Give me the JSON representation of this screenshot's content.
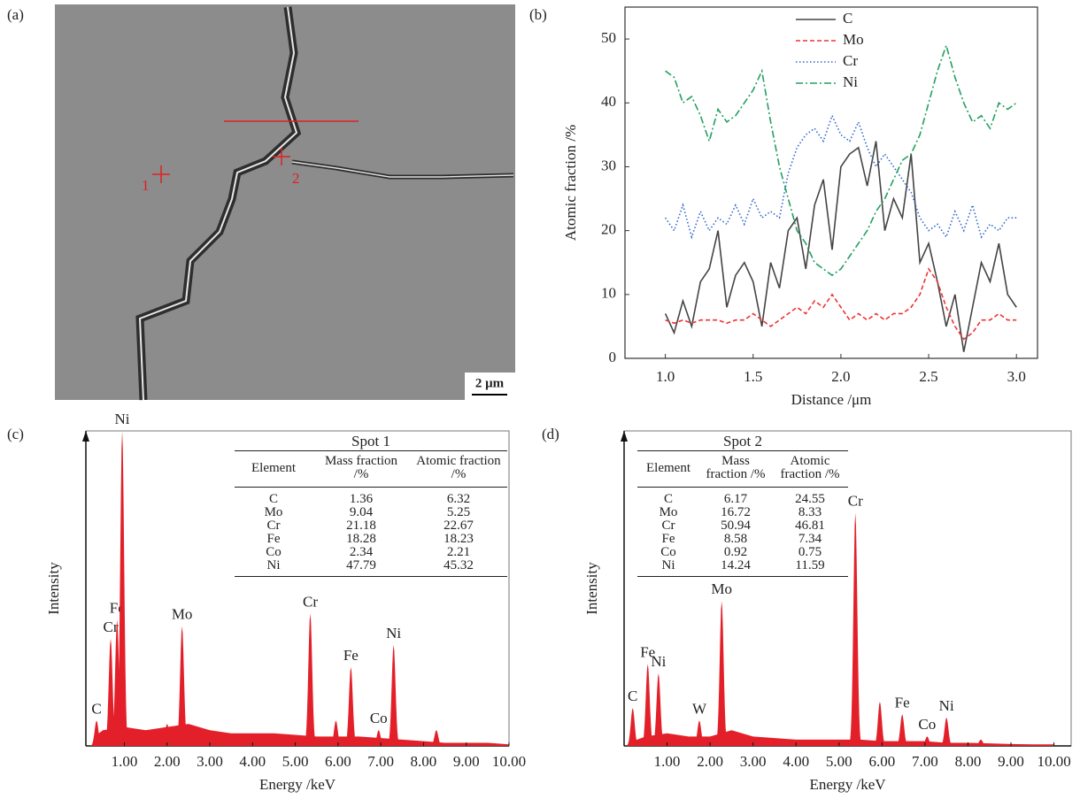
{
  "image": {
    "panel_label": "(a)",
    "spots": [
      "1",
      "2"
    ],
    "scale_bar": "2 μm"
  },
  "chart_data": [
    {
      "type": "line",
      "panel_label": "(b)",
      "xlabel": "Distance /μm",
      "ylabel": "Atomic fraction /%",
      "xlim": [
        0.77,
        3.12
      ],
      "ylim": [
        0,
        55
      ],
      "xticks": [
        {
          "value": 1,
          "label": "1.0"
        },
        1.5,
        {
          "value": 2,
          "label": "2.0"
        },
        2.5,
        {
          "value": 3,
          "label": "3.0"
        }
      ],
      "yticks": [
        0,
        10,
        20,
        30,
        40,
        50
      ],
      "legend": "upper center",
      "x": [
        1.0,
        1.05,
        1.1,
        1.15,
        1.2,
        1.25,
        1.3,
        1.35,
        1.4,
        1.45,
        1.5,
        1.55,
        1.6,
        1.65,
        1.7,
        1.75,
        1.8,
        1.85,
        1.9,
        1.95,
        2.0,
        2.05,
        2.1,
        2.15,
        2.2,
        2.25,
        2.3,
        2.35,
        2.4,
        2.45,
        2.5,
        2.55,
        2.6,
        2.65,
        2.7,
        2.75,
        2.8,
        2.85,
        2.9,
        2.95,
        3.0
      ],
      "series": [
        {
          "name": "C",
          "color": "#444444",
          "linestyle": "solid",
          "values": [
            7,
            4,
            9,
            5,
            12,
            14,
            20,
            8,
            13,
            15,
            12,
            5,
            15,
            11,
            20,
            22,
            14,
            24,
            28,
            17,
            30,
            32,
            33,
            27,
            34,
            20,
            25,
            22,
            32,
            15,
            18,
            12,
            5,
            10,
            1,
            8,
            15,
            12,
            18,
            10,
            8
          ]
        },
        {
          "name": "Mo",
          "color": "#ee3333",
          "linestyle": "dashed",
          "values": [
            6,
            5.5,
            6,
            5.5,
            6,
            6,
            6,
            5.5,
            6,
            6,
            7,
            6,
            5,
            6,
            7,
            8,
            7,
            9,
            8,
            10,
            8,
            6,
            7,
            6,
            7,
            6,
            7,
            7,
            8,
            10,
            14,
            12,
            8,
            5,
            3,
            4,
            6,
            6,
            7,
            6,
            6
          ]
        },
        {
          "name": "Cr",
          "color": "#3366cc",
          "linestyle": "dotted",
          "values": [
            22,
            20,
            24,
            19,
            23,
            20,
            22,
            21,
            24,
            21,
            25,
            22,
            23,
            22,
            29,
            33,
            35,
            36,
            34,
            38,
            35,
            34,
            37,
            33,
            30,
            32,
            30,
            28,
            26,
            22,
            20,
            21,
            19,
            23,
            20,
            24,
            19,
            21,
            20,
            22,
            22
          ]
        },
        {
          "name": "Ni",
          "color": "#22a060",
          "linestyle": "dashdot",
          "values": [
            45,
            44,
            40,
            41,
            38,
            34,
            39,
            37,
            38,
            40,
            42,
            45,
            37,
            30,
            25,
            20,
            18,
            15,
            14,
            13,
            14,
            16,
            18,
            20,
            23,
            25,
            28,
            31,
            32,
            35,
            40,
            45,
            49,
            44,
            40,
            37,
            38,
            36,
            40,
            39,
            40
          ]
        }
      ]
    },
    {
      "type": "spectrum",
      "panel_label": "(c)",
      "xlabel": "Energy /keV",
      "ylabel": "Intensity",
      "color": "#e3202a",
      "xlim": [
        0.1,
        10
      ],
      "ylim": [
        0,
        100
      ],
      "xticks": [
        {
          "value": 1,
          "label": "1.00"
        },
        {
          "value": 2,
          "label": "2.00"
        },
        {
          "value": 3,
          "label": "3.00"
        },
        {
          "value": 4,
          "label": "4.00"
        },
        {
          "value": 5,
          "label": "5.00"
        },
        {
          "value": 6,
          "label": "6.00"
        },
        {
          "value": 7,
          "label": "7.00"
        },
        {
          "value": 8,
          "label": "8.00"
        },
        {
          "value": 9,
          "label": "9.00"
        },
        {
          "value": 10,
          "label": "10.00"
        }
      ],
      "x": [
        0.3,
        0.5,
        1,
        1.5,
        2,
        2.5,
        3,
        3.5,
        4,
        4.5,
        5,
        5.5,
        6,
        6.5,
        7,
        7.5,
        8,
        8.5,
        9,
        9.5,
        10
      ],
      "values": [
        3,
        5,
        6,
        5,
        6,
        7,
        5,
        4,
        4,
        4,
        3.5,
        3,
        3,
        3,
        2.5,
        2,
        1.5,
        1,
        1,
        1,
        0.5
      ],
      "peaks": {
        "labels": [
          "C",
          "Cr",
          "Fe",
          "Ni",
          null,
          "Mo",
          "Cr",
          null,
          "Fe",
          "Co",
          "Ni",
          null
        ],
        "energy": [
          0.35,
          0.68,
          0.83,
          0.95,
          2.0,
          2.35,
          5.35,
          5.95,
          6.3,
          6.95,
          7.3,
          8.3
        ],
        "intensity": [
          8,
          34,
          40,
          100,
          7,
          38,
          42,
          8,
          25,
          5,
          32,
          5
        ]
      },
      "table": {
        "title": "Spot 1",
        "header": [
          "Element",
          "Mass fraction /%",
          "Atomic fraction /%"
        ],
        "rows": [
          [
            "C",
            1.36,
            6.32
          ],
          [
            "Mo",
            9.04,
            5.25
          ],
          [
            "Cr",
            21.18,
            22.67
          ],
          [
            "Fe",
            18.28,
            18.23
          ],
          [
            "Co",
            2.34,
            2.21
          ],
          [
            "Ni",
            47.79,
            45.32
          ]
        ]
      }
    },
    {
      "type": "spectrum",
      "panel_label": "(d)",
      "xlabel": "Energy /keV",
      "ylabel": "Intensity",
      "color": "#e3202a",
      "xlim": [
        0,
        10.4
      ],
      "ylim": [
        0,
        100
      ],
      "xticks": [
        {
          "value": 1,
          "label": "1.00"
        },
        {
          "value": 2,
          "label": "2.00"
        },
        {
          "value": 3,
          "label": "3.00"
        },
        {
          "value": 4,
          "label": "4.00"
        },
        {
          "value": 5,
          "label": "5.00"
        },
        {
          "value": 6,
          "label": "6.00"
        },
        {
          "value": 7,
          "label": "7.00"
        },
        {
          "value": 8,
          "label": "8.00"
        },
        {
          "value": 9,
          "label": "9.00"
        },
        {
          "value": 10,
          "label": "10.00"
        }
      ],
      "x": [
        0.1,
        0.5,
        1,
        1.5,
        2,
        2.5,
        3,
        3.5,
        4,
        4.5,
        5,
        5.5,
        6,
        6.5,
        7,
        7.5,
        8,
        8.5,
        9,
        9.5,
        10
      ],
      "values": [
        1,
        3,
        4,
        3,
        3,
        5,
        3,
        2.5,
        2,
        2,
        2,
        2,
        1.5,
        1.5,
        1.5,
        1,
        1,
        0.8,
        0.6,
        0.5,
        0.5
      ],
      "peaks": {
        "labels": [
          "C",
          "Fe",
          "Ni",
          "W",
          "Mo",
          "Cr",
          null,
          "Fe",
          "Co",
          "Ni",
          null
        ],
        "energy": [
          0.2,
          0.55,
          0.8,
          1.75,
          2.27,
          5.38,
          5.95,
          6.47,
          7.05,
          7.5,
          8.3
        ],
        "intensity": [
          12,
          26,
          23,
          8,
          46,
          74,
          14,
          10,
          3,
          9,
          2
        ]
      },
      "table": {
        "title": "Spot 2",
        "header": [
          "Element",
          "Mass fraction /%",
          "Atomic fraction /%"
        ],
        "rows": [
          [
            "C",
            6.17,
            24.55
          ],
          [
            "Mo",
            16.72,
            8.33
          ],
          [
            "Cr",
            50.94,
            46.81
          ],
          [
            "Fe",
            8.58,
            7.34
          ],
          [
            "Co",
            0.92,
            0.75
          ],
          [
            "Ni",
            14.24,
            11.59
          ]
        ]
      }
    }
  ]
}
